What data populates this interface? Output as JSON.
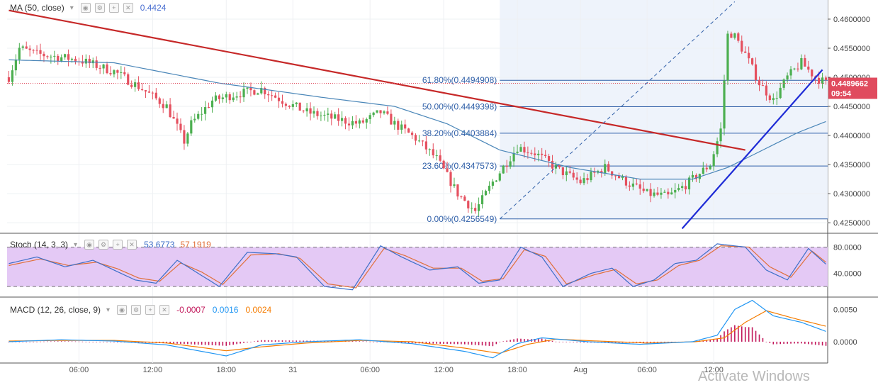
{
  "legends": {
    "ma": {
      "label": "MA (50, close)",
      "value": "0.4424",
      "value_color": "#4a6fd1"
    },
    "stoch": {
      "label": "Stoch (14, 3, 3)",
      "k": "53.6773",
      "d": "57.1919",
      "k_color": "#3d6fc8",
      "d_color": "#e0703a"
    },
    "macd": {
      "label": "MACD (12, 26, close, 9)",
      "hist": "-0.0007",
      "macd": "0.0016",
      "signal": "0.0024",
      "hist_color": "#c2185b",
      "macd_color": "#2196f3",
      "signal_color": "#f57c00"
    }
  },
  "price_badge": {
    "price": "0.4489662",
    "timer": "09:54",
    "color": "#e04b5e"
  },
  "watermark": "Activate Windows",
  "colors": {
    "up": "#4caf50",
    "down": "#e5505f",
    "ma": "#4a86b8",
    "trend_red": "#c62828",
    "trend_blue": "#1e2bd6",
    "fib": "#2f5fa8",
    "stoch_band": "#e4c9f5"
  },
  "chart_data": [
    {
      "type": "candlestick",
      "title": "",
      "xlabel": "",
      "ylabel": "",
      "x_ticks": [
        "06:00",
        "12:00",
        "18:00",
        "31",
        "06:00",
        "12:00",
        "18:00",
        "Aug",
        "06:00",
        "12:00"
      ],
      "ylim": [
        0.4238,
        0.4628
      ],
      "y_ticks": [
        "0.4600000",
        "0.4550000",
        "0.4500000",
        "0.4450000",
        "0.4400000",
        "0.4350000",
        "0.4300000",
        "0.4250000"
      ],
      "grid": true,
      "fib_levels": [
        {
          "label": "61.80%(0.4494908)",
          "value": 0.4494908
        },
        {
          "label": "50.00%(0.4449398)",
          "value": 0.4449398
        },
        {
          "label": "38.20%(0.4403884)",
          "value": 0.4403884
        },
        {
          "label": "23.60%(0.4347573)",
          "value": 0.4347573
        },
        {
          "label": "0.00%(0.4256549)",
          "value": 0.4256549
        }
      ],
      "current_price": 0.4489662,
      "anchors": [
        {
          "t": 0,
          "p": 0.45
        },
        {
          "t": 3,
          "p": 0.455
        },
        {
          "t": 8,
          "p": 0.454
        },
        {
          "t": 20,
          "p": 0.453
        },
        {
          "t": 30,
          "p": 0.451
        },
        {
          "t": 38,
          "p": 0.448
        },
        {
          "t": 45,
          "p": 0.445
        },
        {
          "t": 50,
          "p": 0.439
        },
        {
          "t": 52,
          "p": 0.442
        },
        {
          "t": 58,
          "p": 0.446
        },
        {
          "t": 64,
          "p": 0.447
        },
        {
          "t": 72,
          "p": 0.448
        },
        {
          "t": 78,
          "p": 0.446
        },
        {
          "t": 85,
          "p": 0.444
        },
        {
          "t": 92,
          "p": 0.443
        },
        {
          "t": 100,
          "p": 0.442
        },
        {
          "t": 106,
          "p": 0.444
        },
        {
          "t": 110,
          "p": 0.442
        },
        {
          "t": 116,
          "p": 0.4395
        },
        {
          "t": 122,
          "p": 0.436
        },
        {
          "t": 128,
          "p": 0.43
        },
        {
          "t": 133,
          "p": 0.427
        },
        {
          "t": 138,
          "p": 0.432
        },
        {
          "t": 145,
          "p": 0.438
        },
        {
          "t": 150,
          "p": 0.437
        },
        {
          "t": 157,
          "p": 0.434
        },
        {
          "t": 163,
          "p": 0.432
        },
        {
          "t": 170,
          "p": 0.4345
        },
        {
          "t": 176,
          "p": 0.432
        },
        {
          "t": 182,
          "p": 0.43
        },
        {
          "t": 188,
          "p": 0.4295
        },
        {
          "t": 193,
          "p": 0.4315
        },
        {
          "t": 197,
          "p": 0.4335
        },
        {
          "t": 200,
          "p": 0.435
        },
        {
          "t": 203,
          "p": 0.441
        },
        {
          "t": 205,
          "p": 0.458
        },
        {
          "t": 207,
          "p": 0.457
        },
        {
          "t": 210,
          "p": 0.454
        },
        {
          "t": 214,
          "p": 0.449
        },
        {
          "t": 218,
          "p": 0.446
        },
        {
          "t": 222,
          "p": 0.45
        },
        {
          "t": 226,
          "p": 0.4525
        },
        {
          "t": 230,
          "p": 0.45
        },
        {
          "t": 233,
          "p": 0.449
        }
      ],
      "ma_anchors": [
        {
          "t": 0,
          "p": 0.453
        },
        {
          "t": 30,
          "p": 0.4525
        },
        {
          "t": 60,
          "p": 0.449
        },
        {
          "t": 90,
          "p": 0.4465
        },
        {
          "t": 110,
          "p": 0.445
        },
        {
          "t": 125,
          "p": 0.442
        },
        {
          "t": 140,
          "p": 0.4375
        },
        {
          "t": 160,
          "p": 0.4345
        },
        {
          "t": 180,
          "p": 0.4325
        },
        {
          "t": 195,
          "p": 0.4325
        },
        {
          "t": 205,
          "p": 0.4345
        },
        {
          "t": 215,
          "p": 0.4375
        },
        {
          "t": 225,
          "p": 0.4405
        },
        {
          "t": 233,
          "p": 0.4424
        }
      ],
      "trendlines": [
        {
          "name": "red",
          "p1": {
            "t": 0,
            "p": 0.4615
          },
          "p2": {
            "t": 210,
            "p": 0.4375
          }
        },
        {
          "name": "blue",
          "p1": {
            "t": 192,
            "p": 0.424
          },
          "p2": {
            "t": 232,
            "p": 0.4513
          }
        },
        {
          "name": "fib-diag",
          "p1": {
            "t": 140,
            "p": 0.4256549
          },
          "p2": {
            "t": 207,
            "p": 0.463
          }
        }
      ]
    },
    {
      "type": "line",
      "title": "",
      "y_ticks": [
        "80.0000",
        "40.0000"
      ],
      "ylim": [
        5,
        100
      ],
      "band": [
        20,
        80
      ],
      "k_anchors": [
        {
          "t": 0,
          "p": 55
        },
        {
          "t": 8,
          "p": 65
        },
        {
          "t": 16,
          "p": 50
        },
        {
          "t": 24,
          "p": 60
        },
        {
          "t": 30,
          "p": 45
        },
        {
          "t": 36,
          "p": 30
        },
        {
          "t": 42,
          "p": 25
        },
        {
          "t": 48,
          "p": 60
        },
        {
          "t": 54,
          "p": 40
        },
        {
          "t": 60,
          "p": 20
        },
        {
          "t": 68,
          "p": 72
        },
        {
          "t": 76,
          "p": 70
        },
        {
          "t": 82,
          "p": 65
        },
        {
          "t": 90,
          "p": 20
        },
        {
          "t": 98,
          "p": 15
        },
        {
          "t": 106,
          "p": 82
        },
        {
          "t": 112,
          "p": 65
        },
        {
          "t": 120,
          "p": 45
        },
        {
          "t": 128,
          "p": 50
        },
        {
          "t": 134,
          "p": 25
        },
        {
          "t": 140,
          "p": 30
        },
        {
          "t": 146,
          "p": 80
        },
        {
          "t": 152,
          "p": 65
        },
        {
          "t": 158,
          "p": 20
        },
        {
          "t": 166,
          "p": 40
        },
        {
          "t": 172,
          "p": 48
        },
        {
          "t": 178,
          "p": 20
        },
        {
          "t": 184,
          "p": 30
        },
        {
          "t": 190,
          "p": 55
        },
        {
          "t": 196,
          "p": 60
        },
        {
          "t": 202,
          "p": 85
        },
        {
          "t": 210,
          "p": 80
        },
        {
          "t": 216,
          "p": 45
        },
        {
          "t": 222,
          "p": 30
        },
        {
          "t": 228,
          "p": 78
        },
        {
          "t": 233,
          "p": 54
        }
      ],
      "d_anchors": [
        {
          "t": 0,
          "p": 52
        },
        {
          "t": 9,
          "p": 62
        },
        {
          "t": 17,
          "p": 52
        },
        {
          "t": 25,
          "p": 57
        },
        {
          "t": 31,
          "p": 47
        },
        {
          "t": 37,
          "p": 33
        },
        {
          "t": 43,
          "p": 28
        },
        {
          "t": 49,
          "p": 56
        },
        {
          "t": 55,
          "p": 42
        },
        {
          "t": 61,
          "p": 23
        },
        {
          "t": 69,
          "p": 68
        },
        {
          "t": 77,
          "p": 70
        },
        {
          "t": 83,
          "p": 63
        },
        {
          "t": 91,
          "p": 24
        },
        {
          "t": 99,
          "p": 18
        },
        {
          "t": 107,
          "p": 78
        },
        {
          "t": 113,
          "p": 67
        },
        {
          "t": 121,
          "p": 48
        },
        {
          "t": 129,
          "p": 48
        },
        {
          "t": 135,
          "p": 28
        },
        {
          "t": 141,
          "p": 32
        },
        {
          "t": 147,
          "p": 76
        },
        {
          "t": 153,
          "p": 66
        },
        {
          "t": 159,
          "p": 24
        },
        {
          "t": 167,
          "p": 38
        },
        {
          "t": 173,
          "p": 46
        },
        {
          "t": 179,
          "p": 24
        },
        {
          "t": 185,
          "p": 30
        },
        {
          "t": 191,
          "p": 52
        },
        {
          "t": 197,
          "p": 60
        },
        {
          "t": 203,
          "p": 82
        },
        {
          "t": 211,
          "p": 80
        },
        {
          "t": 217,
          "p": 50
        },
        {
          "t": 223,
          "p": 34
        },
        {
          "t": 229,
          "p": 74
        },
        {
          "t": 233,
          "p": 57
        }
      ]
    },
    {
      "type": "line",
      "title": "",
      "y_ticks": [
        "0.0050",
        "0.0000"
      ],
      "ylim": [
        -0.0033,
        0.0068
      ],
      "macd_anchors": [
        {
          "t": 0,
          "p": 0.0
        },
        {
          "t": 15,
          "p": 0.0003
        },
        {
          "t": 30,
          "p": 0.0001
        },
        {
          "t": 45,
          "p": -0.0005
        },
        {
          "t": 62,
          "p": -0.0022
        },
        {
          "t": 72,
          "p": -0.0005
        },
        {
          "t": 85,
          "p": 0.0
        },
        {
          "t": 100,
          "p": 0.0003
        },
        {
          "t": 115,
          "p": -0.0003
        },
        {
          "t": 130,
          "p": -0.0015
        },
        {
          "t": 138,
          "p": -0.0025
        },
        {
          "t": 145,
          "p": -0.0003
        },
        {
          "t": 152,
          "p": 0.0006
        },
        {
          "t": 165,
          "p": 0.0
        },
        {
          "t": 180,
          "p": -0.0004
        },
        {
          "t": 195,
          "p": 0.0
        },
        {
          "t": 202,
          "p": 0.001
        },
        {
          "t": 207,
          "p": 0.005
        },
        {
          "t": 212,
          "p": 0.0064
        },
        {
          "t": 218,
          "p": 0.004
        },
        {
          "t": 226,
          "p": 0.003
        },
        {
          "t": 233,
          "p": 0.0016
        }
      ],
      "signal_anchors": [
        {
          "t": 0,
          "p": 0.0001
        },
        {
          "t": 15,
          "p": 0.0002
        },
        {
          "t": 30,
          "p": 0.0002
        },
        {
          "t": 45,
          "p": -0.0002
        },
        {
          "t": 62,
          "p": -0.0014
        },
        {
          "t": 72,
          "p": -0.0008
        },
        {
          "t": 85,
          "p": -0.0002
        },
        {
          "t": 100,
          "p": 0.0002
        },
        {
          "t": 115,
          "p": 0.0
        },
        {
          "t": 130,
          "p": -0.001
        },
        {
          "t": 140,
          "p": -0.0018
        },
        {
          "t": 148,
          "p": -0.0004
        },
        {
          "t": 156,
          "p": 0.0004
        },
        {
          "t": 168,
          "p": 0.0001
        },
        {
          "t": 182,
          "p": -0.0002
        },
        {
          "t": 196,
          "p": 0.0
        },
        {
          "t": 204,
          "p": 0.0006
        },
        {
          "t": 210,
          "p": 0.003
        },
        {
          "t": 216,
          "p": 0.0048
        },
        {
          "t": 224,
          "p": 0.0036
        },
        {
          "t": 233,
          "p": 0.0024
        }
      ]
    }
  ]
}
